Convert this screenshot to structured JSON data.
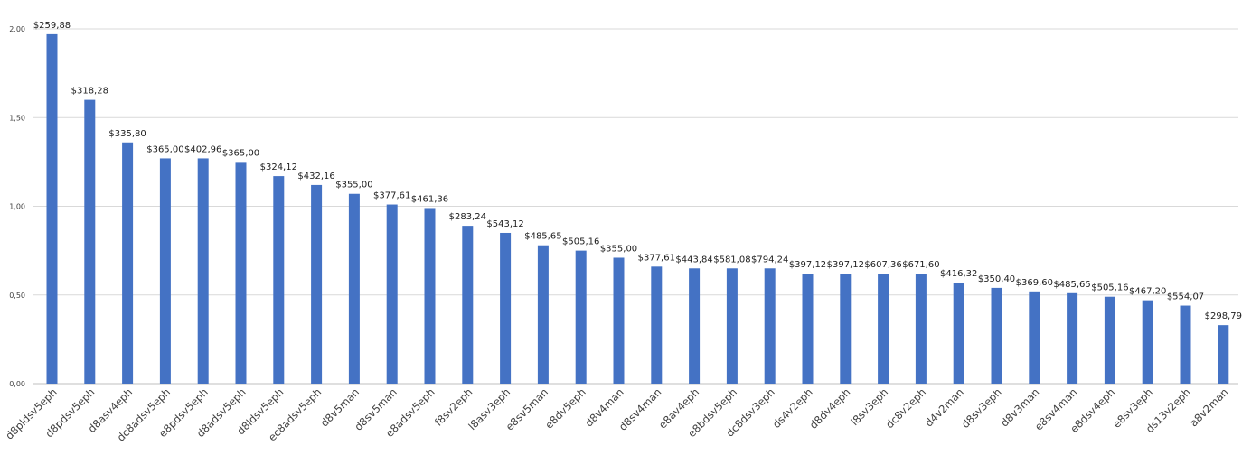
{
  "chart_data": {
    "type": "bar",
    "title": "",
    "xlabel": "",
    "ylabel": "",
    "ylim": [
      0,
      2
    ],
    "yticks": [
      "0,00",
      "0,50",
      "1,00",
      "1,50",
      "2,00"
    ],
    "ytick_values": [
      0,
      0.5,
      1,
      1.5,
      2
    ],
    "grid": true,
    "legend": "none",
    "bar_color": "#4472c4",
    "categories": [
      "d8pldsv5eph",
      "d8pdsv5eph",
      "d8asv4eph",
      "dc8adsv5eph",
      "e8pdsv5eph",
      "d8adsv5eph",
      "d8ldsv5eph",
      "ec8adsv5eph",
      "d8v5man",
      "d8sv5man",
      "e8adsv5eph",
      "f8sv2eph",
      "l8asv3eph",
      "e8sv5man",
      "e8dv5eph",
      "d8v4man",
      "d8sv4man",
      "e8av4eph",
      "e8bdsv5eph",
      "dc8dsv3eph",
      "ds4v2eph",
      "d8dv4eph",
      "l8sv3eph",
      "dc8v2eph",
      "d4v2man",
      "d8sv3eph",
      "d8v3man",
      "e8sv4man",
      "e8dsv4eph",
      "e8sv3eph",
      "ds13v2eph",
      "a8v2man"
    ],
    "values": [
      1.97,
      1.6,
      1.36,
      1.27,
      1.27,
      1.25,
      1.17,
      1.12,
      1.07,
      1.01,
      0.99,
      0.89,
      0.85,
      0.78,
      0.75,
      0.71,
      0.66,
      0.65,
      0.65,
      0.65,
      0.62,
      0.62,
      0.62,
      0.62,
      0.57,
      0.54,
      0.52,
      0.51,
      0.49,
      0.47,
      0.44,
      0.33
    ],
    "data_labels": [
      "$259,88",
      "$318,28",
      "$335,80",
      "$365,00",
      "$402,96",
      "$365,00",
      "$324,12",
      "$432,16",
      "$355,00",
      "$377,61",
      "$461,36",
      "$283,24",
      "$543,12",
      "$485,65",
      "$505,16",
      "$355,00",
      "$377,61",
      "$443,84",
      "$581,08",
      "$794,24",
      "$397,12",
      "$397,12",
      "$607,36",
      "$671,60",
      "$416,32",
      "$350,40",
      "$369,60",
      "$485,65",
      "$505,16",
      "$467,20",
      "$554,07",
      "$298,79"
    ]
  }
}
